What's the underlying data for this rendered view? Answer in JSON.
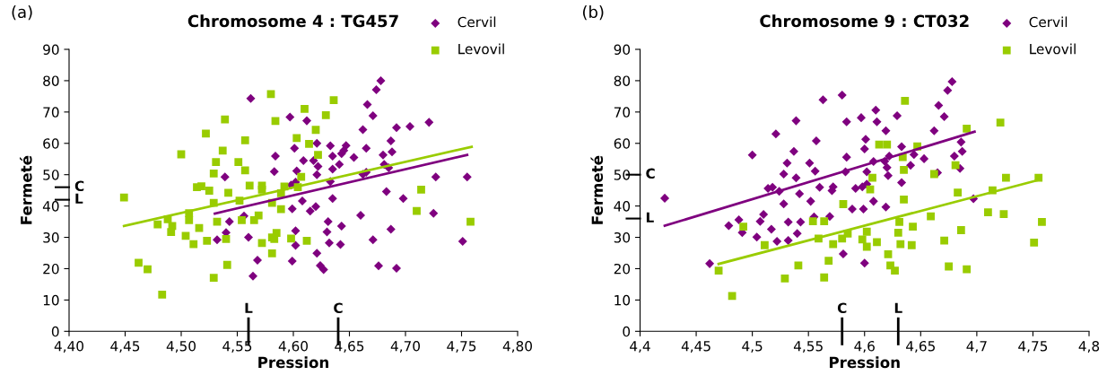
{
  "chart_data": [
    {
      "type": "scatter",
      "title": "Chromosome 4 : TG457",
      "xlabel": "Pression",
      "ylabel": "Fermeté",
      "annotations": [
        "(a)"
      ],
      "xlim": [
        4.4,
        4.8
      ],
      "xticks": [
        {
          "value": 4.4,
          "label": "4,40"
        },
        {
          "value": 4.45,
          "label": "4,45"
        },
        {
          "value": 4.5,
          "label": "4,50"
        },
        {
          "value": 4.55,
          "label": "4,55"
        },
        {
          "value": 4.6,
          "label": "4,60"
        },
        {
          "value": 4.65,
          "label": "4,65"
        },
        {
          "value": 4.7,
          "label": "4,70"
        },
        {
          "value": 4.75,
          "label": "4,75"
        },
        {
          "value": 4.8,
          "label": "4,80"
        }
      ],
      "ylim": [
        0,
        90
      ],
      "yticks": [
        0,
        10,
        20,
        30,
        40,
        50,
        60,
        70,
        80,
        90
      ],
      "grid": false,
      "legend": "top right",
      "ref_lines": [
        {
          "axis": "y",
          "value": 46,
          "label": "C"
        },
        {
          "axis": "y",
          "value": 42,
          "label": "L"
        },
        {
          "axis": "x",
          "value": 4.56,
          "label": "L"
        },
        {
          "axis": "x",
          "value": 4.64,
          "label": "C"
        }
      ],
      "series": [
        {
          "name": "Cervil",
          "marker": "diamond",
          "color": "#7f007f",
          "x": [
            4.562,
            4.584,
            4.583,
            4.539,
            4.543,
            4.556,
            4.54,
            4.532,
            4.56,
            4.568,
            4.564,
            4.678,
            4.674,
            4.666,
            4.671,
            4.597,
            4.612,
            4.721,
            4.704,
            4.692,
            4.662,
            4.687,
            4.621,
            4.633,
            4.647,
            4.601,
            4.688,
            4.665,
            4.645,
            4.643,
            4.654,
            4.635,
            4.68,
            4.609,
            4.618,
            4.641,
            4.622,
            4.681,
            4.685,
            4.635,
            4.603,
            4.621,
            4.665,
            4.662,
            4.727,
            4.755,
            4.633,
            4.598,
            4.602,
            4.683,
            4.698,
            4.635,
            4.608,
            4.62,
            4.599,
            4.615,
            4.725,
            4.66,
            4.631,
            4.643,
            4.602,
            4.687,
            4.63,
            4.632,
            4.642,
            4.671,
            4.602,
            4.751,
            4.621,
            4.599,
            4.624,
            4.627,
            4.676,
            4.692
          ],
          "values": [
            74.3,
            55.9,
            51.0,
            49.3,
            35.0,
            36.8,
            31.5,
            29.2,
            30.0,
            22.7,
            17.6,
            80.0,
            77.1,
            72.4,
            68.8,
            68.4,
            67.2,
            66.7,
            65.4,
            65.0,
            64.4,
            60.8,
            60.0,
            59.2,
            59.3,
            58.4,
            57.3,
            58.4,
            57.7,
            56.7,
            55.5,
            55.9,
            56.3,
            54.5,
            54.5,
            53.3,
            52.6,
            53.3,
            52.2,
            51.8,
            51.2,
            50.0,
            50.8,
            50.1,
            49.3,
            49.3,
            47.8,
            46.7,
            47.6,
            44.6,
            42.4,
            42.4,
            41.6,
            39.8,
            39.1,
            38.4,
            37.7,
            37.0,
            35.0,
            33.6,
            32.1,
            32.6,
            31.7,
            28.2,
            27.7,
            29.2,
            27.4,
            28.7,
            24.9,
            22.4,
            21.0,
            19.7,
            20.9,
            20.1
          ]
        },
        {
          "name": "Levovil",
          "marker": "square",
          "color": "#99cc00",
          "x": [
            4.449,
            4.462,
            4.47,
            4.483,
            4.479,
            4.488,
            4.492,
            4.491,
            4.5,
            4.504,
            4.507,
            4.507,
            4.511,
            4.514,
            4.518,
            4.516,
            4.522,
            4.525,
            4.523,
            4.529,
            4.531,
            4.529,
            4.532,
            4.529,
            4.537,
            4.539,
            4.542,
            4.54,
            4.541,
            4.551,
            4.557,
            4.557,
            4.552,
            4.554,
            4.561,
            4.565,
            4.569,
            4.572,
            4.572,
            4.572,
            4.58,
            4.584,
            4.581,
            4.589,
            4.581,
            4.583,
            4.585,
            4.581,
            4.592,
            4.61,
            4.636,
            4.629,
            4.62,
            4.603,
            4.614,
            4.622,
            4.607,
            4.604,
            4.589,
            4.598,
            4.612,
            4.714,
            4.71,
            4.758
          ],
          "values": [
            42.7,
            21.9,
            19.8,
            11.7,
            34.1,
            35.8,
            33.6,
            31.7,
            56.5,
            30.5,
            37.7,
            35.5,
            27.8,
            46.0,
            46.3,
            33.0,
            63.1,
            44.9,
            28.9,
            50.4,
            54.0,
            41.0,
            35.0,
            17.1,
            57.7,
            67.6,
            44.2,
            29.5,
            21.2,
            54.0,
            51.4,
            61.0,
            41.7,
            35.5,
            46.5,
            35.5,
            37.0,
            28.2,
            46.5,
            45.2,
            75.7,
            67.1,
            41.0,
            39.0,
            30.0,
            29.5,
            31.4,
            24.9,
            46.2,
            71.0,
            73.8,
            69.0,
            64.3,
            61.7,
            59.8,
            56.3,
            49.3,
            46.0,
            44.1,
            29.6,
            28.9,
            45.2,
            38.4,
            35.0
          ]
        },
        {
          "type": "line",
          "color": "#7f007f",
          "x": [
            4.53,
            4.755
          ],
          "values": [
            37.6,
            56.3
          ]
        },
        {
          "type": "line",
          "color": "#99cc00",
          "x": [
            4.449,
            4.759
          ],
          "values": [
            33.6,
            58.9
          ]
        }
      ]
    },
    {
      "type": "scatter",
      "title": "Chromosome 9 : CT032",
      "xlabel": "Pression",
      "ylabel": "Fermeté",
      "annotations": [
        "(b)"
      ],
      "xlim": [
        4.4,
        4.8
      ],
      "xticks": [
        {
          "value": 4.4,
          "label": "4,4"
        },
        {
          "value": 4.45,
          "label": "4,45"
        },
        {
          "value": 4.5,
          "label": "4,5"
        },
        {
          "value": 4.55,
          "label": "4,55"
        },
        {
          "value": 4.6,
          "label": "4,6"
        },
        {
          "value": 4.65,
          "label": "4,65"
        },
        {
          "value": 4.7,
          "label": "4,7"
        },
        {
          "value": 4.75,
          "label": "4,75"
        },
        {
          "value": 4.8,
          "label": "4,8"
        }
      ],
      "ylim": [
        0,
        90
      ],
      "yticks": [
        0,
        10,
        20,
        30,
        40,
        50,
        60,
        70,
        80,
        90
      ],
      "grid": false,
      "legend": "top right",
      "ref_lines": [
        {
          "axis": "y",
          "value": 50,
          "label": "C"
        },
        {
          "axis": "y",
          "value": 36,
          "label": "L"
        },
        {
          "axis": "x",
          "value": 4.58,
          "label": "C"
        },
        {
          "axis": "x",
          "value": 4.63,
          "label": "L"
        }
      ],
      "series": [
        {
          "name": "Cervil",
          "marker": "diamond",
          "color": "#7f007f",
          "x": [
            4.422,
            4.462,
            4.479,
            4.488,
            4.491,
            4.5,
            4.504,
            4.507,
            4.51,
            4.514,
            4.518,
            4.517,
            4.521,
            4.522,
            4.524,
            4.528,
            4.528,
            4.531,
            4.532,
            4.532,
            4.537,
            4.539,
            4.539,
            4.542,
            4.54,
            4.543,
            4.551,
            4.556,
            4.557,
            4.552,
            4.555,
            4.56,
            4.563,
            4.569,
            4.572,
            4.571,
            4.58,
            4.584,
            4.584,
            4.583,
            4.581,
            4.589,
            4.592,
            4.597,
            4.599,
            4.6,
            4.6,
            4.601,
            4.602,
            4.598,
            4.608,
            4.608,
            4.61,
            4.611,
            4.602,
            4.629,
            4.619,
            4.618,
            4.622,
            4.633,
            4.62,
            4.621,
            4.633,
            4.619,
            4.641,
            4.644,
            4.653,
            4.662,
            4.666,
            4.671,
            4.665,
            4.674,
            4.678,
            4.68,
            4.686,
            4.687,
            4.685,
            4.697
          ],
          "values": [
            42.5,
            21.6,
            33.7,
            35.6,
            31.5,
            56.3,
            30.1,
            35.1,
            37.3,
            45.6,
            46.0,
            32.6,
            63.0,
            28.7,
            44.7,
            50.2,
            40.7,
            53.7,
            34.9,
            29.0,
            57.4,
            67.2,
            49.0,
            43.9,
            31.2,
            34.9,
            53.7,
            51.1,
            60.8,
            41.5,
            36.5,
            46.0,
            73.9,
            36.7,
            46.1,
            44.9,
            75.4,
            66.9,
            55.6,
            50.9,
            24.7,
            39.0,
            45.6,
            68.2,
            39.0,
            21.8,
            58.2,
            61.3,
            50.9,
            46.1,
            54.2,
            41.5,
            70.6,
            66.9,
            47.0,
            68.8,
            64.0,
            54.3,
            55.9,
            58.9,
            52.3,
            49.7,
            47.5,
            39.7,
            53.0,
            56.4,
            55.1,
            64.0,
            72.1,
            68.5,
            50.6,
            76.9,
            79.7,
            55.9,
            60.4,
            57.4,
            52.0,
            42.3
          ]
        },
        {
          "name": "Levovil",
          "marker": "square",
          "color": "#99cc00",
          "x": [
            4.47,
            4.482,
            4.492,
            4.511,
            4.529,
            4.541,
            4.554,
            4.564,
            4.559,
            4.564,
            4.568,
            4.572,
            4.581,
            4.58,
            4.585,
            4.598,
            4.602,
            4.602,
            4.605,
            4.607,
            4.611,
            4.613,
            4.62,
            4.636,
            4.647,
            4.634,
            4.635,
            4.635,
            4.631,
            4.63,
            4.643,
            4.632,
            4.642,
            4.621,
            4.623,
            4.627,
            4.659,
            4.662,
            4.671,
            4.675,
            4.681,
            4.683,
            4.686,
            4.691,
            4.691,
            4.71,
            4.714,
            4.721,
            4.726,
            4.724,
            4.751,
            4.755,
            4.758
          ],
          "values": [
            19.4,
            11.3,
            33.4,
            27.5,
            16.9,
            21.0,
            35.1,
            35.1,
            29.6,
            17.2,
            22.5,
            27.8,
            40.6,
            29.6,
            31.2,
            29.3,
            31.8,
            27.0,
            45.3,
            49.0,
            28.5,
            59.6,
            59.6,
            73.6,
            59.0,
            55.6,
            51.5,
            42.1,
            34.9,
            31.5,
            33.4,
            27.8,
            27.5,
            24.6,
            21.0,
            19.4,
            36.7,
            50.2,
            29.0,
            20.7,
            53.0,
            44.3,
            32.3,
            64.7,
            19.8,
            38.0,
            45.0,
            66.6,
            49.0,
            37.4,
            28.3,
            49.0,
            34.9
          ]
        },
        {
          "type": "line",
          "color": "#7f007f",
          "x": [
            4.422,
            4.698
          ],
          "values": [
            33.7,
            63.7
          ]
        },
        {
          "type": "line",
          "color": "#99cc00",
          "x": [
            4.47,
            4.755
          ],
          "values": [
            21.5,
            48.3
          ]
        }
      ]
    }
  ]
}
